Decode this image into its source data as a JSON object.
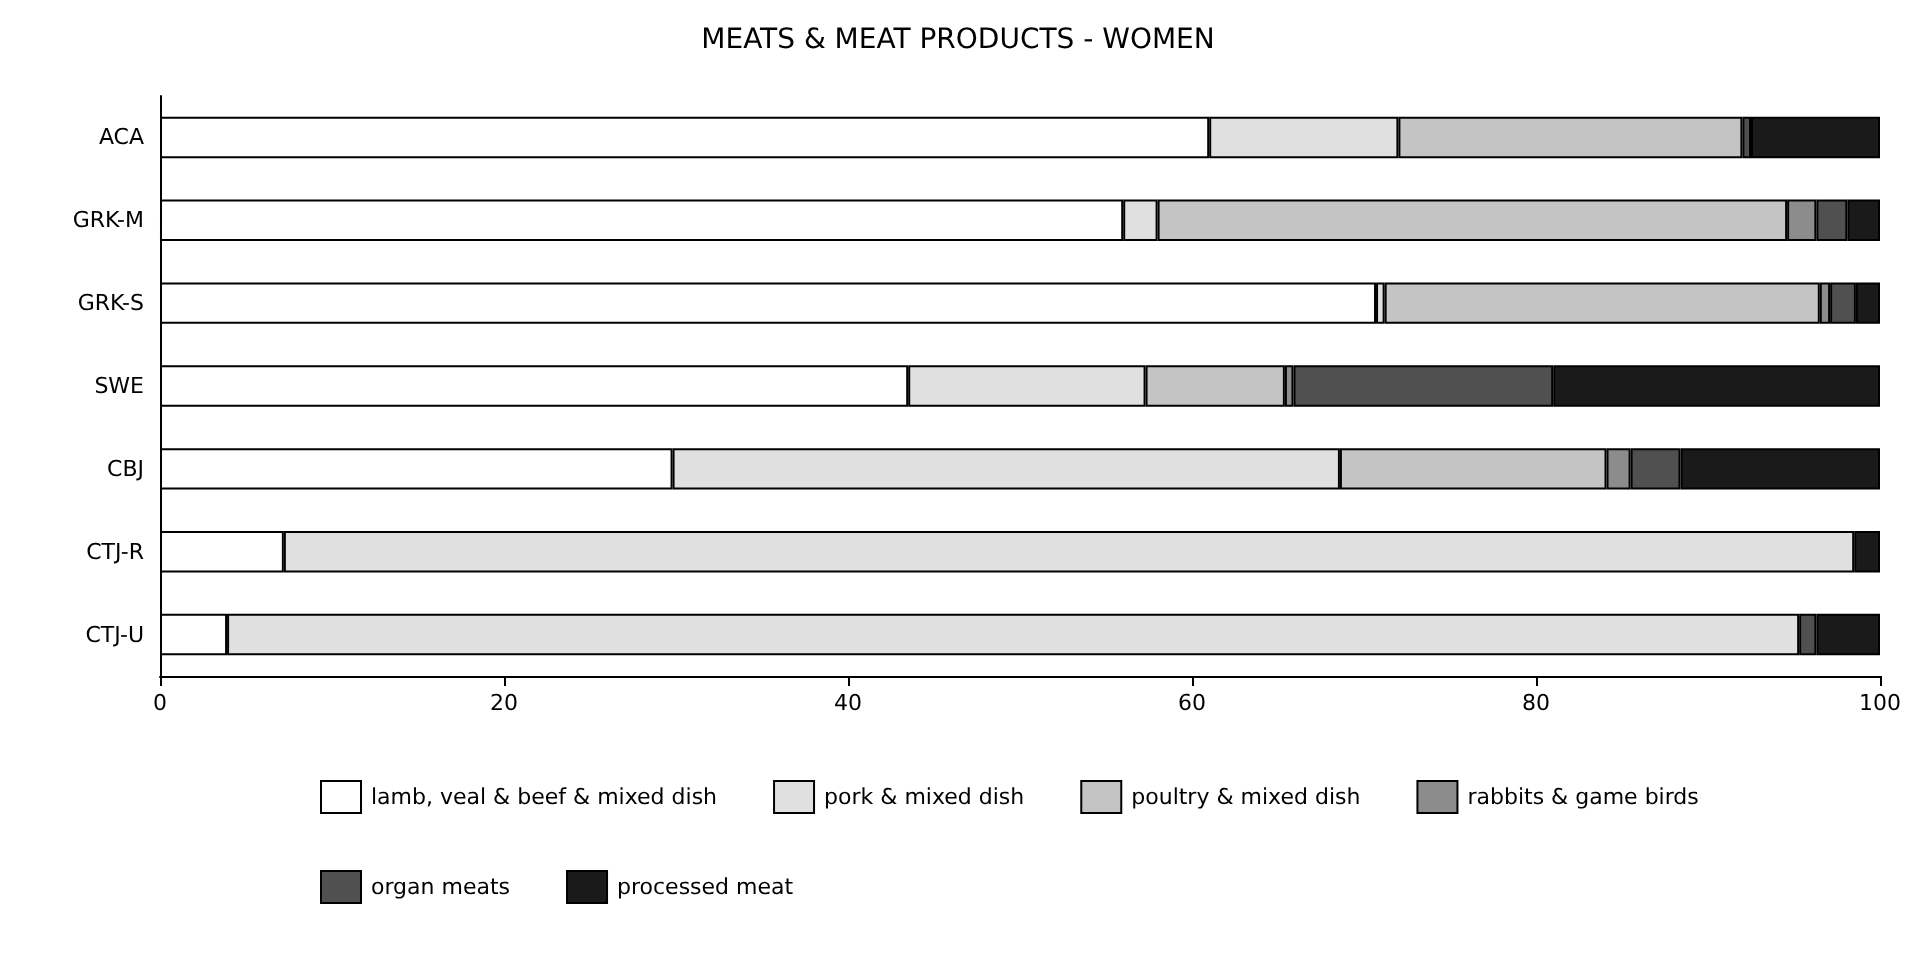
{
  "chart_data": {
    "type": "bar",
    "title": "MEATS & MEAT PRODUCTS - WOMEN",
    "orientation": "horizontal",
    "stacked": true,
    "categories": [
      "ACA",
      "GRK-M",
      "GRK-S",
      "SWE",
      "CBJ",
      "CTJ-R",
      "CTJ-U"
    ],
    "series": [
      {
        "name": "lamb, veal & beef & mixed dish",
        "color": "#ffffff",
        "values": [
          61,
          56,
          70.7,
          43.5,
          29.8,
          7.2,
          3.9
        ]
      },
      {
        "name": "pork & mixed dish",
        "color": "#e0e0e0",
        "values": [
          11,
          2,
          0.5,
          13.8,
          38.8,
          91.3,
          91.4
        ]
      },
      {
        "name": "poultry & mixed dish",
        "color": "#c4c4c4",
        "values": [
          20,
          36.6,
          25.3,
          8.1,
          15.5,
          null,
          null
        ]
      },
      {
        "name": "rabbits & game birds",
        "color": "#8c8c8c",
        "values": [
          null,
          1.7,
          0.6,
          0.5,
          1.4,
          null,
          null
        ]
      },
      {
        "name": "organ meats",
        "color": "#505050",
        "values": [
          0.5,
          1.8,
          1.5,
          15.1,
          2.9,
          null,
          1
        ]
      },
      {
        "name": "processed meat",
        "color": "#1a1a1a",
        "values": [
          7.5,
          1.9,
          1.4,
          19,
          11.6,
          1.5,
          3.7
        ]
      }
    ],
    "xlim": [
      0,
      100
    ],
    "xticks": [
      0,
      20,
      40,
      60,
      80,
      100
    ],
    "grid": false,
    "legend": "bottom"
  }
}
